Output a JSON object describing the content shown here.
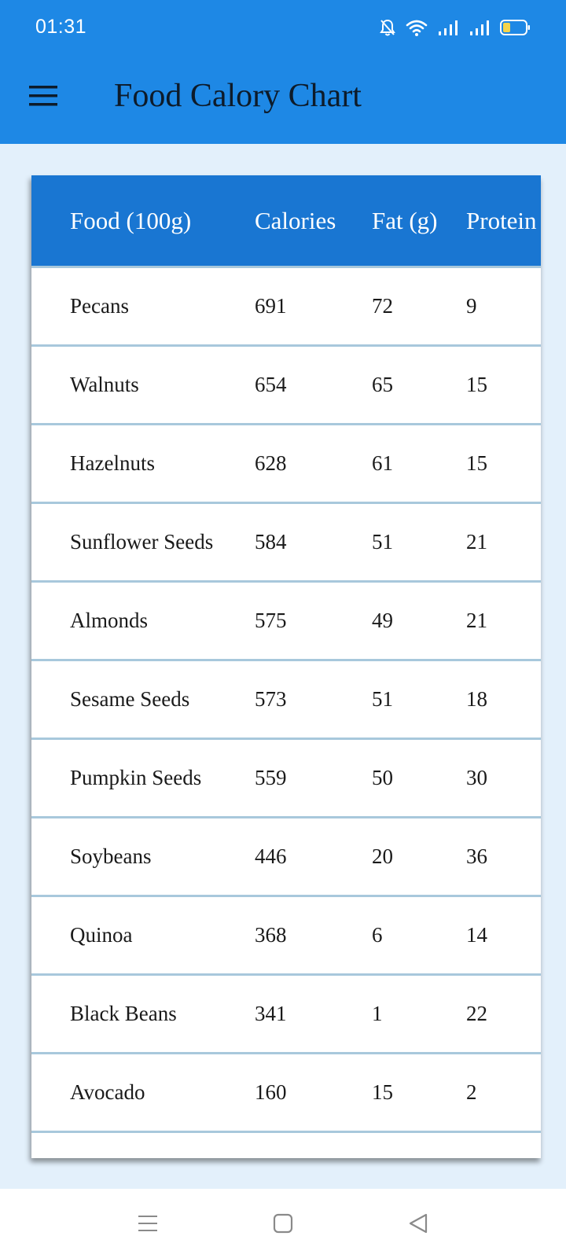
{
  "status_bar": {
    "time": "01:31",
    "icons": [
      "bell-muted-icon",
      "wifi-icon",
      "signal-icon",
      "signal-icon",
      "battery-low-icon"
    ],
    "battery_color": "#f5d44b"
  },
  "toolbar": {
    "menu_icon": "hamburger-menu-icon",
    "title": "Food Calory Chart"
  },
  "colors": {
    "app_bar": "#1e88e5",
    "table_header": "#1976d2",
    "page_background": "#e3f0fb",
    "row_divider": "#a8c8dc"
  },
  "table": {
    "columns": [
      "Food (100g)",
      "Calories",
      "Fat (g)",
      "Protein"
    ],
    "rows": [
      {
        "food": "Pecans",
        "calories": "691",
        "fat": "72",
        "protein": "9"
      },
      {
        "food": "Walnuts",
        "calories": "654",
        "fat": "65",
        "protein": "15"
      },
      {
        "food": "Hazelnuts",
        "calories": "628",
        "fat": "61",
        "protein": "15"
      },
      {
        "food": "Sunflower Seeds",
        "calories": "584",
        "fat": "51",
        "protein": "21"
      },
      {
        "food": "Almonds",
        "calories": "575",
        "fat": "49",
        "protein": "21"
      },
      {
        "food": "Sesame Seeds",
        "calories": "573",
        "fat": "51",
        "protein": "18"
      },
      {
        "food": "Pumpkin Seeds",
        "calories": "559",
        "fat": "50",
        "protein": "30"
      },
      {
        "food": "Soybeans",
        "calories": "446",
        "fat": "20",
        "protein": "36"
      },
      {
        "food": "Quinoa",
        "calories": "368",
        "fat": "6",
        "protein": "14"
      },
      {
        "food": "Black Beans",
        "calories": "341",
        "fat": "1",
        "protein": "22"
      },
      {
        "food": "Avocado",
        "calories": "160",
        "fat": "15",
        "protein": "2"
      }
    ]
  },
  "nav_bar": {
    "buttons": [
      "recent-apps-icon",
      "home-icon",
      "back-icon"
    ]
  }
}
